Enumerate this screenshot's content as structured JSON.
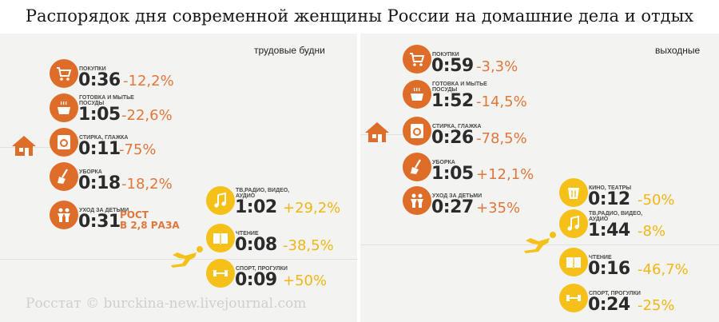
{
  "title": "Распорядок дня современной женщины России на домашние дела и отдых",
  "credit": "Росстат © burckina-new.livejournal.com",
  "weekdays": {
    "label": "трудовые будни",
    "items": [
      {
        "caption": "покупки",
        "time": "0:36",
        "change": "-12,2%",
        "icon": "cart-icon"
      },
      {
        "caption": "готовка и мытье посуды",
        "time": "1:05",
        "change": "-22,6%",
        "icon": "pot-icon"
      },
      {
        "caption": "стирка, глажка",
        "time": "0:11",
        "change": "-75%",
        "icon": "washer-icon"
      },
      {
        "caption": "уборка",
        "time": "0:18",
        "change": "-18,2%",
        "icon": "broom-icon"
      },
      {
        "caption": "уход за детьми",
        "time": "0:31",
        "change_line1": "РОСТ",
        "change_line2": "В 2,8 РАЗА",
        "icon": "children-icon"
      },
      {
        "caption": "тв,радио, видео, аудио",
        "time": "1:02",
        "change": "+29,2%",
        "icon": "music-icon"
      },
      {
        "caption": "чтение",
        "time": "0:08",
        "change": "-38,5%",
        "icon": "book-icon"
      },
      {
        "caption": "спорт, прогулки",
        "time": "0:09",
        "change": "+50%",
        "icon": "dumbbell-icon"
      }
    ]
  },
  "weekend": {
    "label": "выходные",
    "items": [
      {
        "caption": "покупки",
        "time": "0:59",
        "change": "-3,3%",
        "icon": "cart-icon"
      },
      {
        "caption": "готовка и мытье посуды",
        "time": "1:52",
        "change": "-14,5%",
        "icon": "pot-icon"
      },
      {
        "caption": "стирка, глажка",
        "time": "0:26",
        "change": "-78,5%",
        "icon": "washer-icon"
      },
      {
        "caption": "уборка",
        "time": "1:05",
        "change": "+12,1%",
        "icon": "broom-icon"
      },
      {
        "caption": "уход за детьми",
        "time": "0:27",
        "change": "+35%",
        "icon": "children-icon"
      },
      {
        "caption": "кино, театры",
        "time": "0:12",
        "change": "-50%",
        "icon": "cinema-icon"
      },
      {
        "caption": "тв,радио, видео, аудио",
        "time": "1:44",
        "change": "-8%",
        "icon": "music-icon"
      },
      {
        "caption": "чтение",
        "time": "0:16",
        "change": "-46,7%",
        "icon": "book-icon"
      },
      {
        "caption": "спорт, прогулки",
        "time": "0:24",
        "change": "-25%",
        "icon": "dumbbell-icon"
      }
    ]
  },
  "colors": {
    "housework": "#df6d2a",
    "leisure": "#f5c018"
  },
  "chart_data": {
    "type": "table",
    "title": "Распорядок дня современной женщины России на домашние дела и отдых",
    "columns": [
      "трудовые будни",
      "выходные"
    ],
    "rows": [
      {
        "activity": "покупки",
        "weekdays": "0:36",
        "weekdays_change": "-12,2%",
        "weekend": "0:59",
        "weekend_change": "-3,3%"
      },
      {
        "activity": "готовка и мытье посуды",
        "weekdays": "1:05",
        "weekdays_change": "-22,6%",
        "weekend": "1:52",
        "weekend_change": "-14,5%"
      },
      {
        "activity": "стирка, глажка",
        "weekdays": "0:11",
        "weekdays_change": "-75%",
        "weekend": "0:26",
        "weekend_change": "-78,5%"
      },
      {
        "activity": "уборка",
        "weekdays": "0:18",
        "weekdays_change": "-18,2%",
        "weekend": "1:05",
        "weekend_change": "+12,1%"
      },
      {
        "activity": "уход за детьми",
        "weekdays": "0:31",
        "weekdays_change": "РОСТ В 2,8 РАЗА",
        "weekend": "0:27",
        "weekend_change": "+35%"
      },
      {
        "activity": "кино, театры",
        "weekend": "0:12",
        "weekend_change": "-50%"
      },
      {
        "activity": "тв,радио, видео, аудио",
        "weekdays": "1:02",
        "weekdays_change": "+29,2%",
        "weekend": "1:44",
        "weekend_change": "-8%"
      },
      {
        "activity": "чтение",
        "weekdays": "0:08",
        "weekdays_change": "-38,5%",
        "weekend": "0:16",
        "weekend_change": "-46,7%"
      },
      {
        "activity": "спорт, прогулки",
        "weekdays": "0:09",
        "weekdays_change": "+50%",
        "weekend": "0:24",
        "weekend_change": "-25%"
      }
    ]
  }
}
